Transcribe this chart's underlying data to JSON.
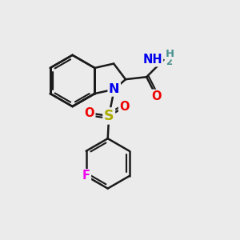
{
  "background_color": "#ebebeb",
  "bond_color": "#1a1a1a",
  "bond_lw": 1.8,
  "atom_colors": {
    "N": "#0000ee",
    "O": "#ee0000",
    "S": "#aaaa00",
    "F": "#ee00ee",
    "NH_teal": "#4a9090",
    "H_teal": "#4a9090"
  },
  "figsize": [
    3.0,
    3.0
  ],
  "dpi": 100
}
